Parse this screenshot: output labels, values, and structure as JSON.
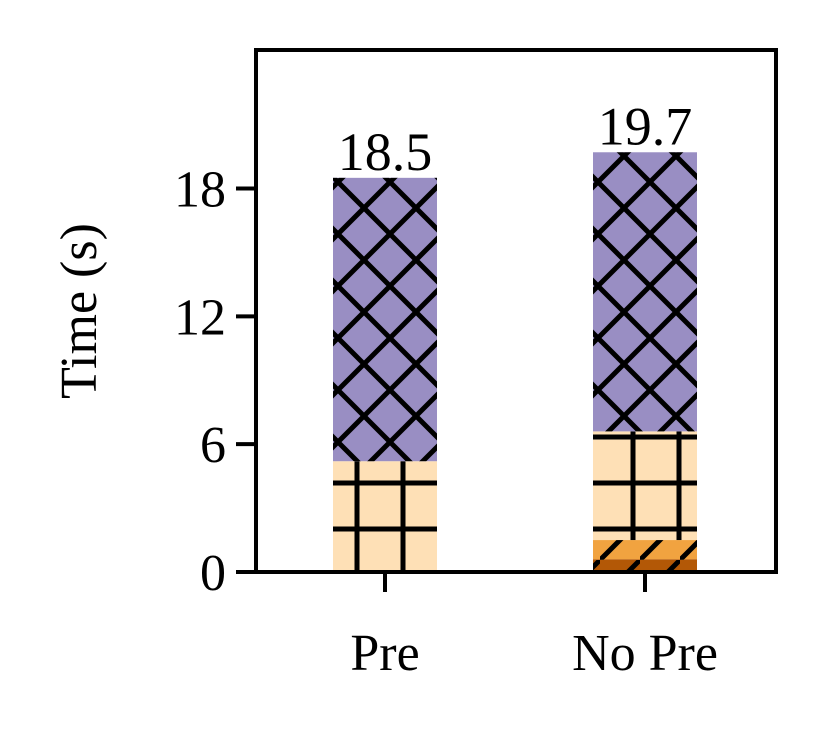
{
  "chart_data": {
    "type": "bar",
    "stacked": true,
    "title": "",
    "xlabel": "",
    "ylabel": "Time (s)",
    "categories": [
      "Pre",
      "No Pre"
    ],
    "ylim": [
      0,
      24.5
    ],
    "yticks": [
      0,
      6,
      12,
      18
    ],
    "series": [
      {
        "values": [
          0,
          0.6
        ],
        "color": "#b35806",
        "hatch": "diagonal"
      },
      {
        "values": [
          0,
          0.9
        ],
        "color": "#f1a340",
        "hatch": "diagonal"
      },
      {
        "values": [
          5.2,
          5.1
        ],
        "color": "#fee0b6",
        "hatch": "grid"
      },
      {
        "values": [
          13.3,
          13.1
        ],
        "color": "#998ec3",
        "hatch": "crosshatch"
      }
    ],
    "totals": [
      "18.5",
      "19.7"
    ],
    "grid": false,
    "legend": "none"
  }
}
